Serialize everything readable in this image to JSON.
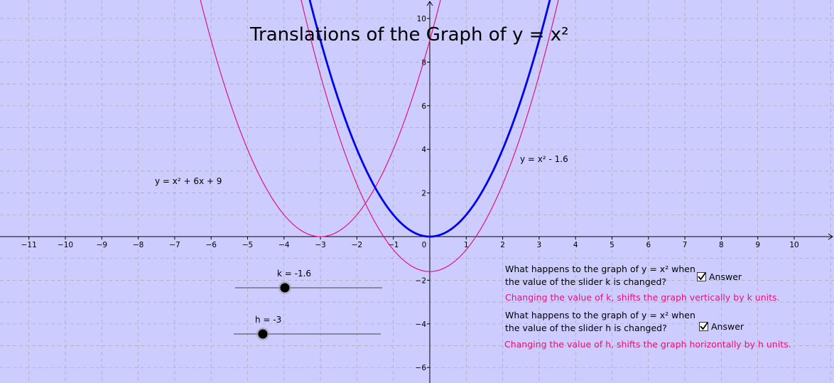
{
  "title": "Translations of the Graph of y = x²",
  "axis": {
    "x_ticks": [
      "−11",
      "−10",
      "−9",
      "−8",
      "−7",
      "−6",
      "−5",
      "−4",
      "−3",
      "−2",
      "−1",
      "0",
      "1",
      "2",
      "3",
      "4",
      "5",
      "6",
      "7",
      "8",
      "9",
      "10"
    ],
    "y_ticks": [
      "10",
      "8",
      "6",
      "4",
      "2",
      "−2",
      "−4",
      "−6"
    ]
  },
  "curves": {
    "shifted_h_label": "y = x² + 6x + 9",
    "shifted_k_label": "y = x² - 1.6",
    "base_color": "#0000ee",
    "translated_color": "#e0157a"
  },
  "sliders": {
    "k": {
      "label": "k = -1.6",
      "value": -1.6
    },
    "h": {
      "label": "h = -3",
      "value": -3
    }
  },
  "questions": {
    "q1_line1": "What happens to the graph of y = x² when",
    "q1_line2": "the value of the slider k is changed?",
    "q1_answer_toggle": "Answer",
    "q1_answer": "Changing the value of k, shifts the graph vertically by k units.",
    "q2_line1": "What happens to the graph of y = x² when",
    "q2_line2": "the value of the slider h is changed?",
    "q2_answer_toggle": "Answer",
    "q2_answer": "Changing the value of h, shifts the graph horizontally by h units."
  }
}
